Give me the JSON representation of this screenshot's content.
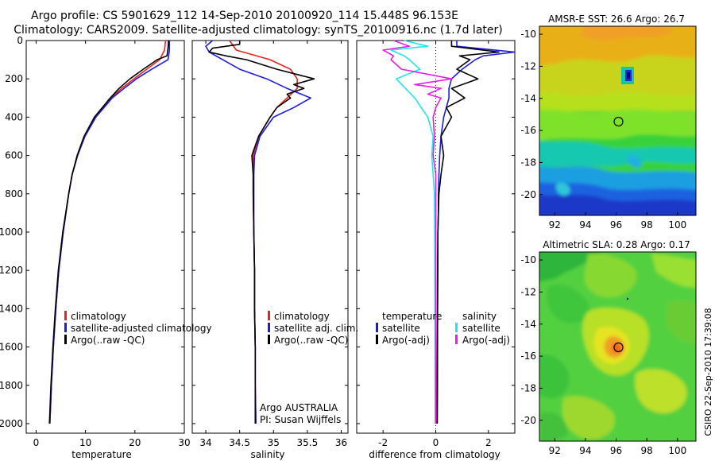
{
  "header": {
    "line1": "Argo profile: CS 5901629_112 14-Sep-2010 20100920_114 15.448S 96.153E",
    "line2": "Climatology: CARS2009. Satellite-adjusted climatology: synTS_20100916.nc (1.7d later)"
  },
  "side_label": "CSIRO 22-Sep-2010 17:39:08",
  "colors": {
    "climatology": "#e8231c",
    "satellite": "#1c1ce0",
    "argo": "#000000",
    "sat_salinity": "#22e6e6",
    "argo_salinity": "#e61ee6"
  },
  "chart_data": [
    {
      "type": "line",
      "id": "temperature",
      "xlabel": "temperature",
      "ylabel": "",
      "xlim": [
        -2,
        30
      ],
      "ylim": [
        2050,
        0
      ],
      "xticks": [
        0,
        10,
        20,
        30
      ],
      "yticks": [
        0,
        200,
        400,
        600,
        800,
        1000,
        1200,
        1400,
        1600,
        1800,
        2000
      ],
      "series": [
        {
          "name": "climatology",
          "color": "#e8231c",
          "depth": [
            0,
            50,
            100,
            150,
            200,
            250,
            300,
            400,
            500,
            600,
            700,
            800,
            1000,
            1200,
            1400,
            1600,
            1800,
            2000
          ],
          "values": [
            26.2,
            26.0,
            25.0,
            22.4,
            19.8,
            17.3,
            15.2,
            12.0,
            9.8,
            8.4,
            7.3,
            6.6,
            5.5,
            4.6,
            4.0,
            3.5,
            3.1,
            2.8
          ]
        },
        {
          "name": "satellite-adjusted climatology",
          "color": "#1c1ce0",
          "depth": [
            0,
            50,
            100,
            150,
            200,
            250,
            300,
            400,
            500,
            600,
            700,
            800,
            1000,
            1200,
            1400,
            1600,
            1800,
            2000
          ],
          "values": [
            27.0,
            27.0,
            26.7,
            23.4,
            20.3,
            17.8,
            15.4,
            12.1,
            9.9,
            8.4,
            7.3,
            6.6,
            5.5,
            4.6,
            4.0,
            3.5,
            3.1,
            2.8
          ]
        },
        {
          "name": "Argo(..raw -QC)",
          "color": "#000000",
          "depth": [
            0,
            40,
            80,
            100,
            150,
            200,
            250,
            300,
            400,
            500,
            600,
            700,
            800,
            1000,
            1200,
            1400,
            1600,
            1800,
            2000
          ],
          "values": [
            26.8,
            26.7,
            26.5,
            24.5,
            21.7,
            19.0,
            16.8,
            15.0,
            11.8,
            9.7,
            8.3,
            7.3,
            6.6,
            5.4,
            4.5,
            3.9,
            3.4,
            3.0,
            2.7
          ]
        }
      ],
      "legend": [
        "climatology",
        "satellite-adjusted climatology",
        "Argo(..raw -QC)"
      ]
    },
    {
      "type": "line",
      "id": "salinity",
      "xlabel": "salinity",
      "ylabel": "",
      "xlim": [
        33.8,
        36.1
      ],
      "ylim": [
        2050,
        0
      ],
      "xticks": [
        34,
        34.5,
        35,
        35.5,
        36
      ],
      "series": [
        {
          "name": "climatology",
          "color": "#e8231c",
          "depth": [
            0,
            50,
            100,
            150,
            200,
            250,
            300,
            350,
            400,
            500,
            600,
            700,
            800,
            1000,
            1200,
            1400,
            1600,
            1800,
            2000
          ],
          "values": [
            34.35,
            34.45,
            34.95,
            35.25,
            35.35,
            35.35,
            35.2,
            35.05,
            34.95,
            34.78,
            34.7,
            34.7,
            34.7,
            34.71,
            34.72,
            34.72,
            34.73,
            34.73,
            34.74
          ]
        },
        {
          "name": "satellite adj. clim.",
          "color": "#1c1ce0",
          "depth": [
            0,
            30,
            60,
            100,
            150,
            200,
            250,
            300,
            350,
            400,
            500,
            600,
            700,
            800,
            1000,
            1200,
            1400,
            1600,
            1800,
            2000
          ],
          "values": [
            34.1,
            34.0,
            34.05,
            34.25,
            34.5,
            34.9,
            35.2,
            35.55,
            35.3,
            35.0,
            34.8,
            34.72,
            34.71,
            34.71,
            34.71,
            34.72,
            34.72,
            34.73,
            34.73,
            34.74
          ]
        },
        {
          "name": "Argo(..raw -QC)",
          "color": "#000000",
          "depth": [
            0,
            20,
            40,
            60,
            80,
            100,
            150,
            200,
            230,
            250,
            280,
            300,
            350,
            400,
            500,
            600,
            700,
            800,
            1000,
            1200,
            1400,
            1600,
            1800,
            2000
          ],
          "values": [
            34.5,
            34.5,
            34.1,
            34.05,
            34.3,
            34.6,
            35.05,
            35.6,
            35.3,
            35.45,
            35.2,
            35.25,
            35.05,
            34.95,
            34.78,
            34.68,
            34.7,
            34.7,
            34.71,
            34.72,
            34.72,
            34.73,
            34.73,
            34.73
          ]
        }
      ],
      "legend": [
        "climatology",
        "satellite adj. clim.",
        "Argo(..raw -QC)"
      ],
      "annotation": [
        "Argo AUSTRALIA",
        "PI: Susan Wijffels"
      ]
    },
    {
      "type": "line",
      "id": "difference",
      "xlabel": "difference from climatology",
      "ylabel": "",
      "xlim": [
        -3,
        3
      ],
      "ylim": [
        2050,
        0
      ],
      "xticks": [
        -2,
        0,
        2
      ],
      "zero_line": "dotted",
      "series": [
        {
          "name": "temperature satellite",
          "color": "#1c1ce0",
          "depth": [
            0,
            30,
            60,
            80,
            100,
            150,
            200,
            250,
            300,
            350,
            400,
            500,
            600,
            700,
            800,
            900,
            1000,
            1200,
            1500,
            1800,
            2000
          ],
          "values": [
            0.8,
            0.8,
            3.0,
            1.8,
            1.5,
            1.0,
            0.6,
            0.5,
            0.5,
            0.4,
            0.3,
            0.2,
            0.15,
            0.12,
            0.1,
            0.1,
            0.08,
            0.08,
            0.07,
            0.07,
            0.06
          ]
        },
        {
          "name": "temperature Argo(-adj)",
          "color": "#000000",
          "depth": [
            0,
            30,
            60,
            80,
            100,
            150,
            200,
            250,
            300,
            350,
            400,
            500,
            600,
            700,
            800,
            900,
            1000,
            1200,
            1500,
            1800,
            2000
          ],
          "values": [
            0.6,
            0.6,
            2.4,
            0.9,
            1.3,
            0.8,
            1.6,
            0.6,
            1.1,
            0.4,
            0.6,
            0.2,
            0.3,
            0.2,
            0.12,
            0.1,
            0.08,
            0.07,
            0.06,
            0.05,
            0.05
          ]
        },
        {
          "name": "salinity satellite",
          "color": "#22e6e6",
          "depth": [
            0,
            30,
            50,
            80,
            100,
            150,
            200,
            300,
            400,
            500,
            600,
            700,
            800,
            1000,
            1500,
            2000
          ],
          "values": [
            -1.2,
            -0.3,
            -1.7,
            -1.2,
            -1.0,
            -0.6,
            -1.5,
            -0.8,
            -0.3,
            -0.1,
            -0.15,
            -0.1,
            -0.05,
            -0.04,
            -0.03,
            -0.02
          ]
        },
        {
          "name": "salinity Argo(-adj)",
          "color": "#e61ee6",
          "depth": [
            0,
            30,
            50,
            80,
            100,
            150,
            200,
            230,
            250,
            280,
            300,
            350,
            400,
            500,
            600,
            700,
            800,
            1000,
            1500,
            2000
          ],
          "values": [
            -1.6,
            -1.0,
            -2.0,
            -1.6,
            -1.7,
            -1.3,
            0.6,
            -0.8,
            0.2,
            -0.3,
            0.2,
            0.0,
            -0.1,
            -0.05,
            -0.1,
            0.0,
            0.0,
            0.0,
            0.0,
            0.0
          ]
        }
      ],
      "legend_titles": [
        "temperature",
        "salinity"
      ],
      "legend": [
        "satellite",
        "Argo(-adj)",
        "satellite",
        "Argo(-adj)"
      ]
    },
    {
      "type": "heatmap",
      "id": "sst-map",
      "title": "AMSR-E SST: 26.6 Argo: 26.7",
      "xlim": [
        91,
        101.2
      ],
      "ylim": [
        -21.3,
        -9.5
      ],
      "xticks": [
        92,
        94,
        96,
        98,
        100
      ],
      "yticks": [
        -10,
        -12,
        -14,
        -16,
        -18,
        -20
      ],
      "marker": {
        "lon": 96.153,
        "lat": -15.448
      }
    },
    {
      "type": "heatmap",
      "id": "sla-map",
      "title": "Altimetric SLA: 0.28 Argo: 0.17",
      "xlim": [
        91,
        101.2
      ],
      "ylim": [
        -21.3,
        -9.5
      ],
      "xticks": [
        92,
        94,
        96,
        98,
        100
      ],
      "yticks": [
        -10,
        -12,
        -14,
        -16,
        -18,
        -20
      ],
      "marker": {
        "lon": 96.153,
        "lat": -15.448
      }
    }
  ]
}
